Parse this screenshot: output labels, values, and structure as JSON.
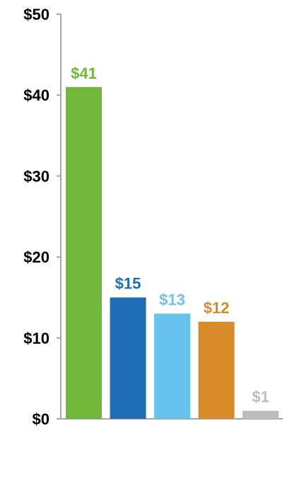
{
  "chart_data": {
    "type": "bar",
    "title": "",
    "xlabel": "",
    "ylabel": "",
    "ylim": [
      0,
      50
    ],
    "y_ticks": [
      0,
      10,
      20,
      30,
      40,
      50
    ],
    "y_tick_labels": [
      "$0",
      "$10",
      "$20",
      "$30",
      "$40",
      "$50"
    ],
    "grid": false,
    "legend": "none",
    "categories": [
      "",
      "",
      "",
      "",
      ""
    ],
    "values": [
      41,
      15,
      13,
      12,
      1
    ],
    "data_labels": [
      "$41",
      "$15",
      "$13",
      "$12",
      "$1"
    ],
    "colors": [
      "#70b73a",
      "#1f6db5",
      "#67c3ee",
      "#d98b29",
      "#bdbdbd"
    ]
  }
}
